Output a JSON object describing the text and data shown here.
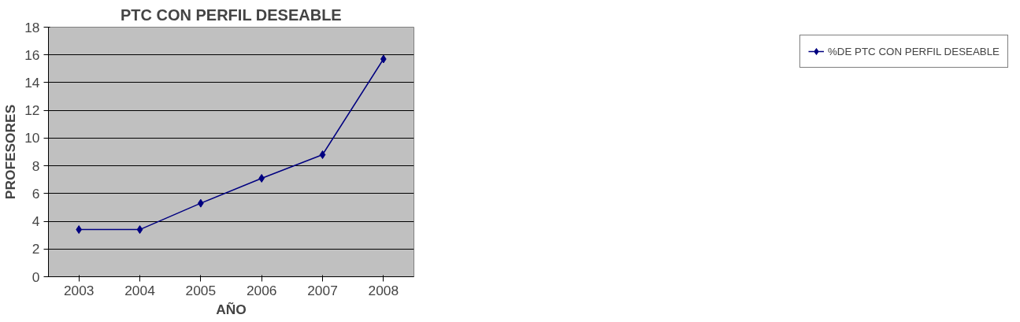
{
  "chart_data": {
    "type": "line",
    "title": "PTC CON PERFIL DESEABLE",
    "xlabel": "AÑO",
    "ylabel": "PROFESORES",
    "categories": [
      "2003",
      "2004",
      "2005",
      "2006",
      "2007",
      "2008"
    ],
    "series": [
      {
        "name": "%DE PTC CON PERFIL DESEABLE",
        "color": "#000080",
        "values": [
          3.4,
          3.4,
          5.3,
          7.1,
          8.8,
          15.7
        ]
      }
    ],
    "ylim": [
      0,
      18
    ],
    "yticks": [
      0,
      2,
      4,
      6,
      8,
      10,
      12,
      14,
      16,
      18
    ],
    "grid": "y",
    "legend": "right",
    "marker": "diamond"
  }
}
